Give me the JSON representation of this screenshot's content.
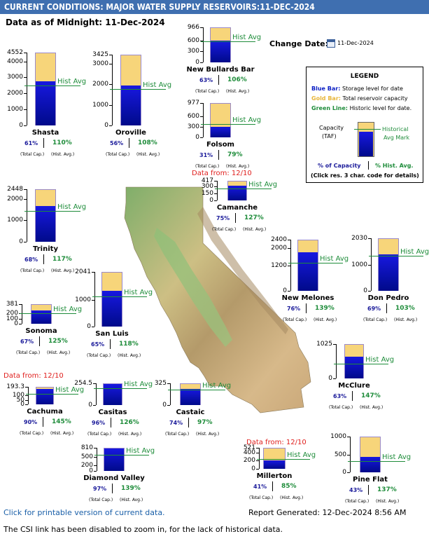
{
  "title": "CURRENT CONDITIONS: MAJOR WATER SUPPLY RESERVOIRS:11-DEC-2024",
  "as_of": "Data as of Midnight: 11-Dec-2024",
  "change_date": {
    "label": "Change Date:",
    "value": "11-Dec-2024"
  },
  "legend": {
    "title": "LEGEND",
    "blue": "Blue Bar:",
    "blue_desc": "Storage level for date",
    "gold": "Gold Bar:",
    "gold_desc": "Total reservoir capacity",
    "green": "Green Line:",
    "green_desc": "Historic level for date.",
    "capacity": "Capacity",
    "taf": "(TAF)",
    "historical": "Historical",
    "avg_mark": "Avg Mark",
    "pct_cap": "% of Capacity",
    "pct_hist": "% Hist. Avg.",
    "click": "(Click res. 3 char. code for details)",
    "colors": {
      "blue": "#0b1fc4",
      "gold": "#e8b63a",
      "green": "#1e8c3a"
    }
  },
  "hist_label": "Hist Avg",
  "total_cap_label": "(Total Cap.)",
  "hist_avg_label": "(Hist. Avg.)",
  "chart_data": {
    "type": "bar",
    "units": "TAF",
    "reservoirs": [
      {
        "name": "Shasta",
        "capacity": 4552,
        "ticks": [
          0,
          1000,
          2000,
          3000,
          4000,
          4552
        ],
        "pct_capacity": 61,
        "pct_hist": 110,
        "data_from": ""
      },
      {
        "name": "Oroville",
        "capacity": 3425,
        "ticks": [
          0,
          1000,
          2000,
          3000,
          3425
        ],
        "pct_capacity": 56,
        "pct_hist": 108,
        "data_from": ""
      },
      {
        "name": "New Bullards Bar",
        "capacity": 966,
        "ticks": [
          0,
          300,
          600,
          966
        ],
        "pct_capacity": 63,
        "pct_hist": 106,
        "data_from": ""
      },
      {
        "name": "Folsom",
        "capacity": 977,
        "ticks": [
          0,
          300,
          600,
          977
        ],
        "pct_capacity": 31,
        "pct_hist": 79,
        "data_from": ""
      },
      {
        "name": "Camanche",
        "capacity": 417,
        "ticks": [
          0,
          150,
          300,
          417
        ],
        "pct_capacity": 75,
        "pct_hist": 127,
        "data_from": "Data from: 12/10"
      },
      {
        "name": "Trinity",
        "capacity": 2448,
        "ticks": [
          0,
          1000,
          2000,
          2448
        ],
        "pct_capacity": 68,
        "pct_hist": 117,
        "data_from": ""
      },
      {
        "name": "New Melones",
        "capacity": 2400,
        "ticks": [
          0,
          1200,
          2000,
          2400
        ],
        "pct_capacity": 76,
        "pct_hist": 139,
        "data_from": ""
      },
      {
        "name": "Don Pedro",
        "capacity": 2030,
        "ticks": [
          0,
          1000,
          2030
        ],
        "pct_capacity": 69,
        "pct_hist": 103,
        "data_from": ""
      },
      {
        "name": "Sonoma",
        "capacity": 381,
        "ticks": [
          0,
          100,
          200,
          381
        ],
        "pct_capacity": 67,
        "pct_hist": 125,
        "data_from": ""
      },
      {
        "name": "San Luis",
        "capacity": 2041,
        "ticks": [
          0,
          1000,
          2041
        ],
        "pct_capacity": 65,
        "pct_hist": 118,
        "data_from": ""
      },
      {
        "name": "McClure",
        "capacity": 1025,
        "ticks": [
          0,
          1025
        ],
        "pct_capacity": 63,
        "pct_hist": 147,
        "data_from": ""
      },
      {
        "name": "Cachuma",
        "capacity": 193.3,
        "ticks": [
          0,
          50,
          100,
          193.3
        ],
        "pct_capacity": 90,
        "pct_hist": 145,
        "data_from": "Data from: 12/10"
      },
      {
        "name": "Casitas",
        "capacity": 254.5,
        "ticks": [
          0,
          254.5
        ],
        "pct_capacity": 96,
        "pct_hist": 126,
        "data_from": ""
      },
      {
        "name": "Castaic",
        "capacity": 325,
        "ticks": [
          0,
          325
        ],
        "pct_capacity": 74,
        "pct_hist": 97,
        "data_from": ""
      },
      {
        "name": "Diamond Valley",
        "capacity": 810,
        "ticks": [
          0,
          200,
          500,
          810
        ],
        "pct_capacity": 97,
        "pct_hist": 139,
        "data_from": ""
      },
      {
        "name": "Millerton",
        "capacity": 521,
        "ticks": [
          0,
          200,
          400,
          521
        ],
        "pct_capacity": 41,
        "pct_hist": 85,
        "data_from": "Data from: 12/10"
      },
      {
        "name": "Pine Flat",
        "capacity": 1000,
        "ticks": [
          0,
          500,
          1000
        ],
        "pct_capacity": 43,
        "pct_hist": 137,
        "data_from": ""
      }
    ]
  },
  "footer": {
    "printable_link": "Click for printable version of current data.",
    "report_generated": "Report Generated: 12-Dec-2024 8:56 AM",
    "note": "The CSI link has been disabled to zoom in, for the lack of historical data."
  }
}
